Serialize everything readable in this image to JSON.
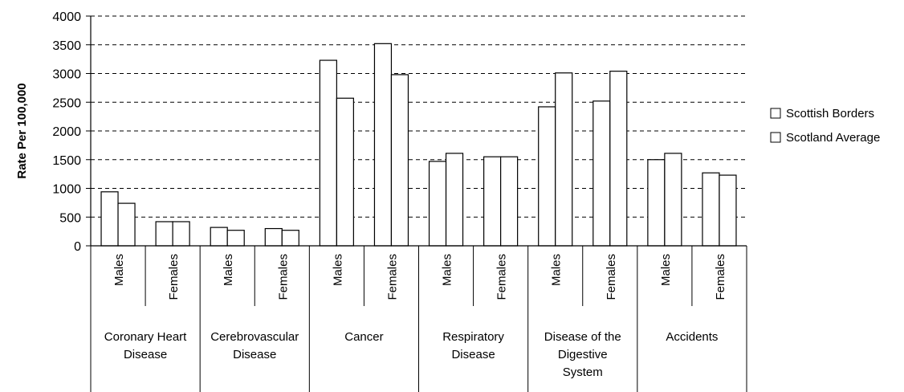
{
  "chart_data": {
    "type": "bar",
    "title": "",
    "ylabel": "Rate Per 100,000",
    "ylim": [
      0,
      4000
    ],
    "y_ticks": [
      0,
      500,
      1000,
      1500,
      2000,
      2500,
      3000,
      3500,
      4000
    ],
    "grid": "horizontal-dashed",
    "legend_position": "right",
    "categories": [
      {
        "group": [
          "Coronary Heart",
          "Disease"
        ],
        "sex": "Males"
      },
      {
        "group": [
          "Coronary Heart",
          "Disease"
        ],
        "sex": "Females"
      },
      {
        "group": [
          "Cerebrovascular",
          "Disease"
        ],
        "sex": "Males"
      },
      {
        "group": [
          "Cerebrovascular",
          "Disease"
        ],
        "sex": "Females"
      },
      {
        "group": [
          "Cancer"
        ],
        "sex": "Males"
      },
      {
        "group": [
          "Cancer"
        ],
        "sex": "Females"
      },
      {
        "group": [
          "Respiratory",
          "Disease"
        ],
        "sex": "Males"
      },
      {
        "group": [
          "Respiratory",
          "Disease"
        ],
        "sex": "Females"
      },
      {
        "group": [
          "Disease of the",
          "Digestive",
          "System"
        ],
        "sex": "Males"
      },
      {
        "group": [
          "Disease of the",
          "Digestive",
          "System"
        ],
        "sex": "Females"
      },
      {
        "group": [
          "Accidents"
        ],
        "sex": "Males"
      },
      {
        "group": [
          "Accidents"
        ],
        "sex": "Females"
      }
    ],
    "groups": [
      {
        "label": [
          "Coronary Heart",
          "Disease"
        ]
      },
      {
        "label": [
          "Cerebrovascular",
          "Disease"
        ]
      },
      {
        "label": [
          "Cancer"
        ]
      },
      {
        "label": [
          "Respiratory",
          "Disease"
        ]
      },
      {
        "label": [
          "Disease of the",
          "Digestive",
          "System"
        ]
      },
      {
        "label": [
          "Accidents"
        ]
      }
    ],
    "series": [
      {
        "name": "Scottish Borders",
        "values": [
          940,
          420,
          320,
          300,
          3230,
          3520,
          1470,
          1550,
          2420,
          2520,
          1500,
          1270
        ],
        "color": "#ffffff"
      },
      {
        "name": "Scotland Average",
        "values": [
          740,
          420,
          270,
          270,
          2570,
          2980,
          1610,
          1550,
          3010,
          3040,
          1610,
          1230
        ],
        "color": "#ffffff"
      }
    ]
  }
}
